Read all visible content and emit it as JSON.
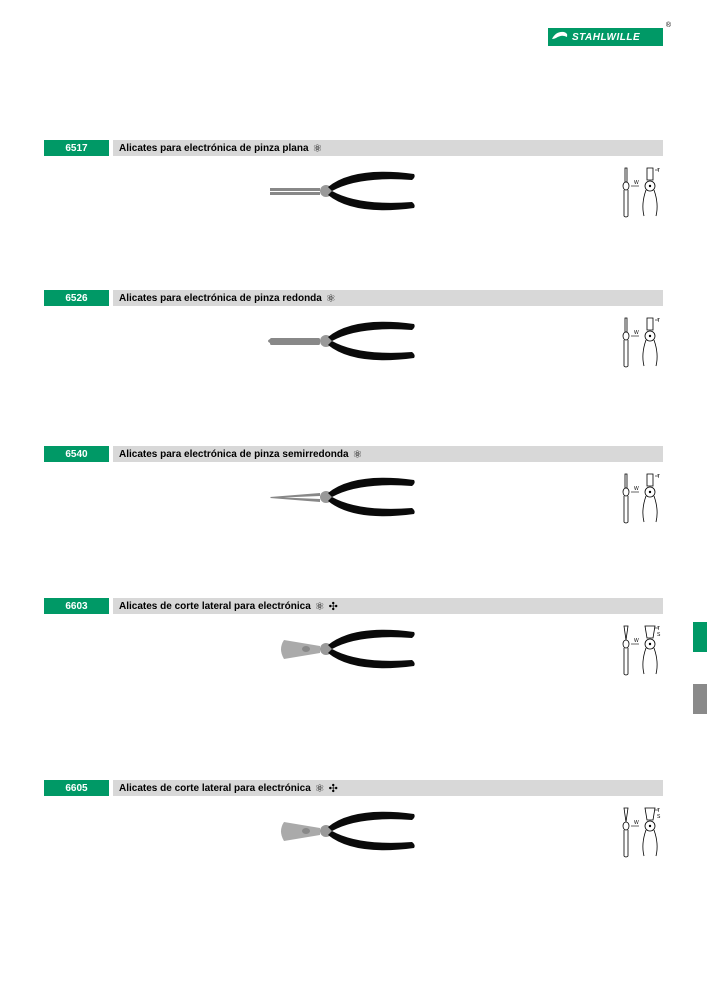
{
  "brand": "STAHLWILLE",
  "products": [
    {
      "code": "6517",
      "title": "Alicates para electrónica de pinza plana",
      "icons": [
        "atom"
      ],
      "tool": "flat"
    },
    {
      "code": "6526",
      "title": "Alicates para electrónica de pinza redonda",
      "icons": [
        "atom"
      ],
      "tool": "round"
    },
    {
      "code": "6540",
      "title": "Alicates para electrónica de pinza semirredonda",
      "icons": [
        "atom"
      ],
      "tool": "semi"
    },
    {
      "code": "6603",
      "title": "Alicates de corte lateral para electrónica",
      "icons": [
        "atom",
        "flower"
      ],
      "tool": "cutter"
    },
    {
      "code": "6605",
      "title": "Alicates de corte lateral para electrónica",
      "icons": [
        "atom",
        "flower"
      ],
      "tool": "cutter"
    }
  ],
  "colors": {
    "brand_green": "#009966",
    "header_gray": "#d8d8d8",
    "side_gray": "#8a8a8a"
  },
  "schematic_labels": {
    "w": "W",
    "t": "T",
    "s": "S"
  }
}
